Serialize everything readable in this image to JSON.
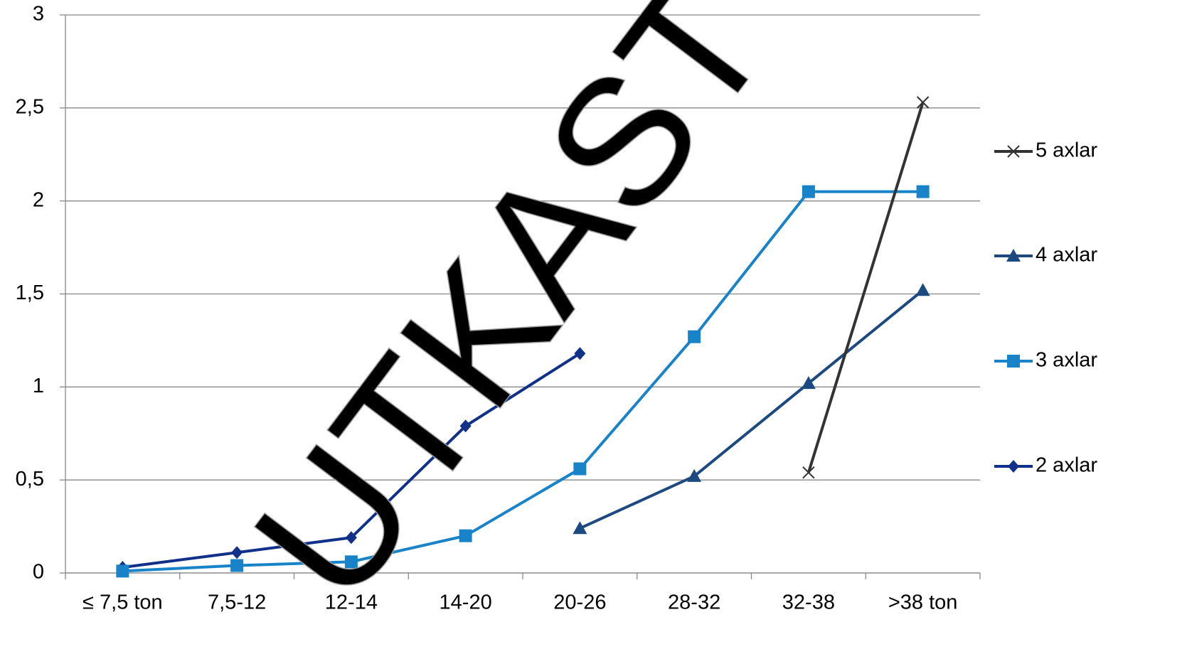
{
  "chart_data": {
    "type": "line",
    "watermark": "UTKAST",
    "categories": [
      "≤ 7,5 ton",
      "7,5-12",
      "12-14",
      "14-20",
      "20-26",
      "28-32",
      "32-38",
      ">38 ton"
    ],
    "series": [
      {
        "name": "2 axlar",
        "color": "#10308a",
        "marker": "diamond",
        "values": [
          0.03,
          0.11,
          0.19,
          0.79,
          1.18,
          null,
          null,
          null
        ]
      },
      {
        "name": "3 axlar",
        "color": "#1883c9",
        "marker": "square",
        "values": [
          0.01,
          0.04,
          0.06,
          0.2,
          0.56,
          1.27,
          2.05,
          2.05
        ]
      },
      {
        "name": "4 axlar",
        "color": "#1c4a80",
        "marker": "triangle",
        "values": [
          null,
          null,
          null,
          null,
          0.24,
          0.52,
          1.02,
          1.52
        ]
      },
      {
        "name": "5 axlar",
        "color": "#333333",
        "marker": "x",
        "values": [
          null,
          null,
          null,
          null,
          null,
          null,
          0.54,
          2.53
        ]
      }
    ],
    "ylim": [
      0,
      3
    ],
    "yticks": [
      0,
      {
        "value": 0.5,
        "label": "0,5"
      },
      1,
      {
        "value": 1.5,
        "label": "1,5"
      },
      2,
      {
        "value": 2.5,
        "label": "2,5"
      },
      3
    ],
    "grid": true,
    "legend": "right"
  }
}
